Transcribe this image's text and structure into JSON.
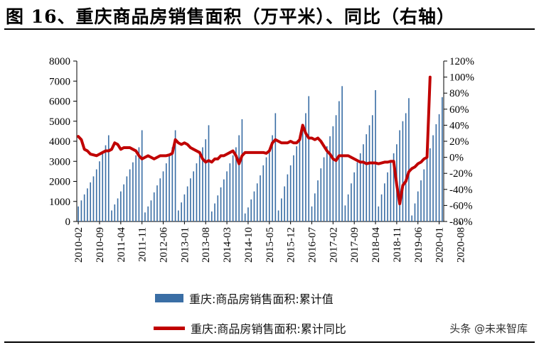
{
  "title": "图 16、重庆商品房销售面积（万平米）、同比（右轴）",
  "watermark": "头条 @未来智库",
  "chart_data": {
    "type": "bar+line",
    "title": "图 16、重庆商品房销售面积（万平米）、同比（右轴）",
    "y_left": {
      "min": 0,
      "max": 8000,
      "ticks": [
        0,
        1000,
        2000,
        3000,
        4000,
        5000,
        6000,
        7000,
        8000
      ]
    },
    "y_right": {
      "min": -80,
      "max": 120,
      "ticks": [
        "-80%",
        "-60%",
        "-40%",
        "-20%",
        "0%",
        "20%",
        "40%",
        "60%",
        "80%",
        "100%",
        "120%"
      ]
    },
    "x_tick_labels": [
      "2010-02",
      "2010-09",
      "2011-04",
      "2011-11",
      "2012-06",
      "2013-01",
      "2013-08",
      "2014-03",
      "2014-10",
      "2015-05",
      "2015-12",
      "2016-07",
      "2017-02",
      "2017-09",
      "2018-04",
      "2018-11",
      "2019-06",
      "2020-01",
      "2020-08"
    ],
    "legend_position": "bottom",
    "colors": {
      "bars": "#3a6ea5",
      "line": "#c00000"
    },
    "series": [
      {
        "name": "重庆:商品房销售面积:累计值",
        "kind": "bar",
        "values": [
          750,
          1050,
          1350,
          1650,
          1950,
          2250,
          2600,
          3000,
          3400,
          3800,
          4300,
          550,
          850,
          1150,
          1500,
          1850,
          2250,
          2600,
          2950,
          3300,
          3700,
          4550,
          450,
          750,
          1050,
          1450,
          1800,
          2150,
          2500,
          2900,
          3300,
          3700,
          4550,
          550,
          950,
          1350,
          1750,
          2150,
          2500,
          2900,
          3300,
          3700,
          4100,
          4800,
          500,
          900,
          1300,
          1700,
          2100,
          2500,
          2900,
          3300,
          3700,
          4300,
          5100,
          400,
          700,
          1100,
          1500,
          1900,
          2300,
          2800,
          3200,
          3600,
          4300,
          5400,
          550,
          1150,
          1750,
          2350,
          2800,
          3300,
          3750,
          4300,
          4850,
          5400,
          6250,
          750,
          1400,
          2050,
          2650,
          3200,
          3750,
          4250,
          4750,
          5300,
          6000,
          6750,
          800,
          1350,
          1900,
          2450,
          2950,
          3400,
          3850,
          4350,
          4800,
          5300,
          6550,
          750,
          1350,
          1900,
          2450,
          2950,
          3400,
          3850,
          4550,
          5000,
          5400,
          6150,
          300,
          900,
          1500,
          2050,
          2600,
          3150,
          3650,
          4300,
          4850,
          5350,
          6200
        ]
      },
      {
        "name": "重庆:商品房销售面积:累计同比",
        "kind": "line",
        "unit": "%",
        "values": [
          26,
          22,
          10,
          8,
          4,
          3,
          2,
          4,
          6,
          8,
          8,
          10,
          18,
          16,
          10,
          12,
          12,
          12,
          10,
          8,
          2,
          -2,
          0,
          2,
          0,
          -2,
          0,
          2,
          2,
          2,
          3,
          5,
          22,
          18,
          16,
          18,
          16,
          12,
          10,
          8,
          6,
          -2,
          -6,
          -4,
          -6,
          -2,
          -2,
          2,
          2,
          4,
          6,
          8,
          2,
          -8,
          2,
          6,
          6,
          6,
          6,
          6,
          6,
          6,
          5,
          8,
          18,
          22,
          20,
          18,
          18,
          18,
          20,
          18,
          18,
          22,
          40,
          30,
          24,
          24,
          22,
          24,
          20,
          14,
          8,
          4,
          -2,
          -4,
          2,
          2,
          2,
          2,
          0,
          -2,
          -4,
          -6,
          -6,
          -8,
          -7,
          -7,
          -7,
          -8,
          -7,
          -6,
          -6,
          -5,
          -5,
          -34,
          -58,
          -35,
          -30,
          -18,
          -14,
          -12,
          -8,
          -6,
          -2,
          0,
          100
        ]
      }
    ]
  },
  "legend": {
    "bar_label": "重庆:商品房销售面积:累计值",
    "line_label": "重庆:商品房销售面积:累计同比"
  }
}
